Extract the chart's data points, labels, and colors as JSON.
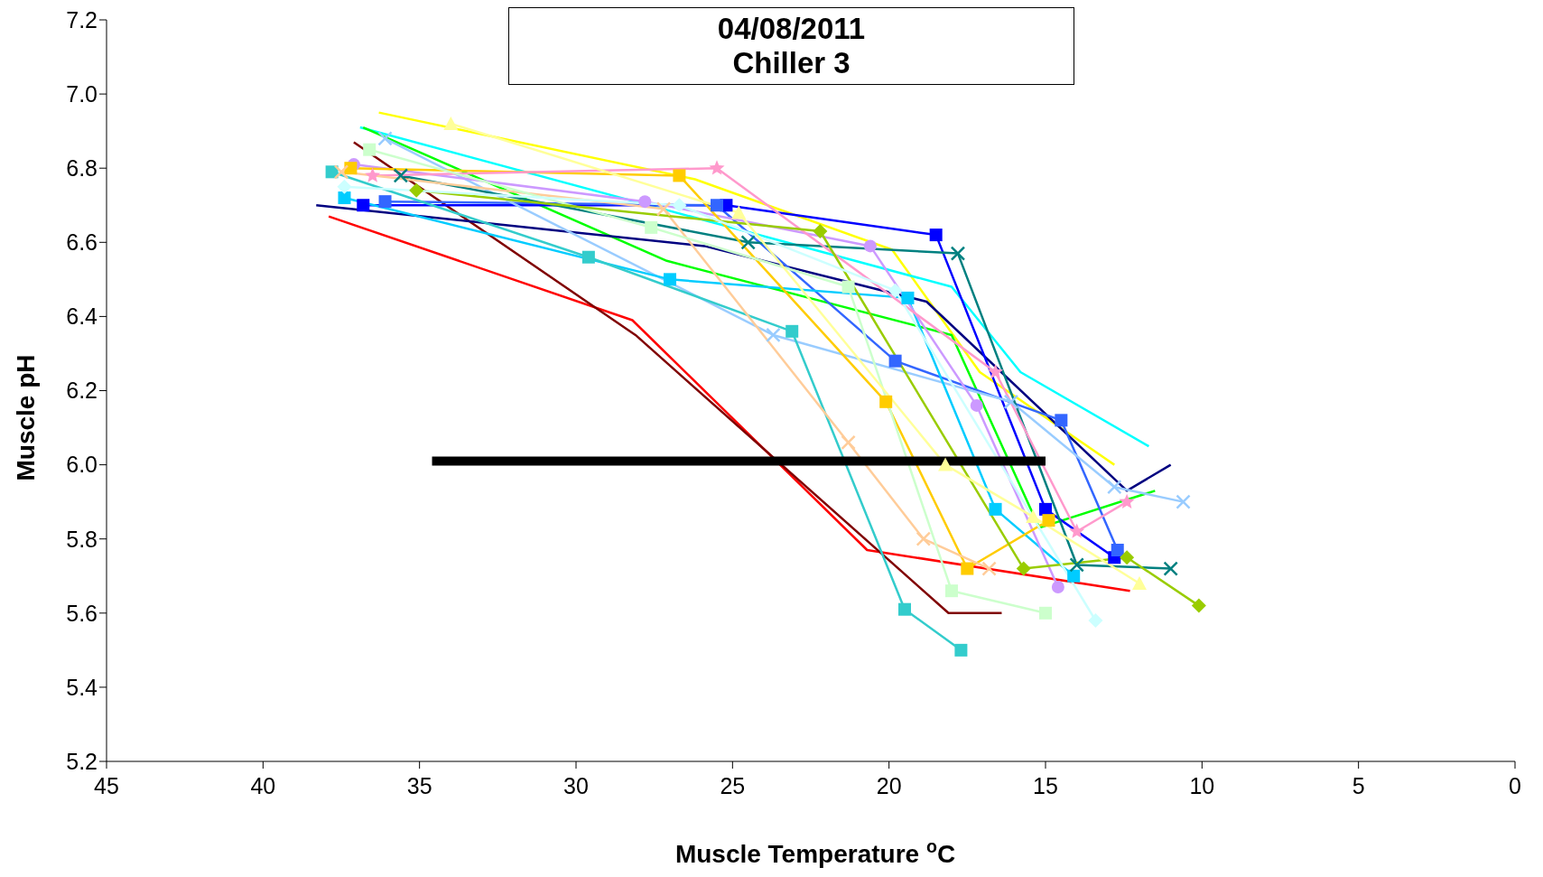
{
  "chart_data": {
    "type": "line",
    "title": "04/08/2011\nChiller 3",
    "xlabel": "Muscle Temperature $^{o}$C",
    "ylabel": "Muscle pH",
    "xlim": [
      45,
      0
    ],
    "xticks": [
      45,
      40,
      35,
      30,
      25,
      20,
      15,
      10,
      5,
      0
    ],
    "ylim": [
      5.2,
      7.2
    ],
    "yticks": [
      5.2,
      5.4,
      5.6,
      5.8,
      {
        "value": 6,
        "label": "6.0"
      },
      6.2,
      6.4,
      6.6,
      6.8,
      {
        "value": 7,
        "label": "7.0"
      },
      7.2
    ],
    "line_style": "solid",
    "series": [
      {
        "color": "#ff0000",
        "marker": "none",
        "x": [
          37.9,
          28.2,
          20.7,
          12.3
        ],
        "values": [
          6.67,
          6.39,
          5.77,
          5.66
        ]
      },
      {
        "color": "#800000",
        "marker": "none",
        "x": [
          37.1,
          28.1,
          18.1,
          16.4
        ],
        "values": [
          6.87,
          6.35,
          5.6,
          5.6
        ]
      },
      {
        "color": "#ffff00",
        "marker": "none",
        "x": [
          36.3,
          26.2,
          19.9,
          17.1,
          12.8
        ],
        "values": [
          6.95,
          6.77,
          6.58,
          6.25,
          6.0
        ]
      },
      {
        "color": "#00ffff",
        "marker": "none",
        "x": [
          36.9,
          18.0,
          15.8,
          11.7
        ],
        "values": [
          6.91,
          6.48,
          6.25,
          6.05
        ]
      },
      {
        "color": "#00ff00",
        "marker": "none",
        "x": [
          36.8,
          27.1,
          18.0,
          15.2,
          11.5
        ],
        "values": [
          6.91,
          6.55,
          6.35,
          5.83,
          5.93
        ]
      },
      {
        "color": "#000080",
        "marker": "none",
        "x": [
          38.3,
          25.9,
          18.8,
          12.4,
          11.0
        ],
        "values": [
          6.7,
          6.59,
          6.44,
          5.93,
          6.0
        ]
      },
      {
        "color": "#0000ff",
        "marker": "square",
        "x": [
          36.8,
          25.2,
          18.5,
          15.0,
          12.8
        ],
        "values": [
          6.7,
          6.7,
          6.62,
          5.88,
          5.75
        ]
      },
      {
        "color": "#3366ff",
        "marker": "square",
        "x": [
          36.1,
          25.5,
          19.8,
          14.5,
          12.7
        ],
        "values": [
          6.71,
          6.7,
          6.28,
          6.12,
          5.77
        ]
      },
      {
        "color": "#99ccff",
        "marker": "cross",
        "x": [
          36.1,
          23.7,
          16.1,
          12.8,
          10.6
        ],
        "values": [
          6.88,
          6.35,
          6.17,
          5.94,
          5.9
        ]
      },
      {
        "color": "#00ccff",
        "marker": "square",
        "x": [
          37.4,
          27.0,
          19.4,
          16.6,
          14.1
        ],
        "values": [
          6.72,
          6.5,
          6.45,
          5.88,
          5.7
        ]
      },
      {
        "color": "#33cccc",
        "marker": "square",
        "x": [
          37.8,
          29.6,
          23.1,
          19.5,
          17.7
        ],
        "values": [
          6.79,
          6.56,
          6.36,
          5.61,
          5.5
        ]
      },
      {
        "color": "#008080",
        "marker": "cross",
        "x": [
          35.6,
          24.5,
          17.8,
          14.0,
          11.0
        ],
        "values": [
          6.78,
          6.6,
          6.57,
          5.73,
          5.72
        ]
      },
      {
        "color": "#cc99ff",
        "marker": "circle",
        "x": [
          37.1,
          27.8,
          20.6,
          17.2,
          14.6
        ],
        "values": [
          6.81,
          6.71,
          6.59,
          6.16,
          5.67
        ]
      },
      {
        "color": "#ffcc00",
        "marker": "square",
        "x": [
          37.2,
          26.7,
          20.1,
          17.5,
          14.9
        ],
        "values": [
          6.8,
          6.78,
          6.17,
          5.72,
          5.85
        ]
      },
      {
        "color": "#ff99cc",
        "marker": "star",
        "x": [
          36.5,
          25.5,
          16.6,
          14.0,
          12.4
        ],
        "values": [
          6.78,
          6.8,
          6.25,
          5.82,
          5.9
        ]
      },
      {
        "color": "#ffcc99",
        "marker": "cross",
        "x": [
          37.5,
          27.2,
          21.3,
          18.9,
          16.8
        ],
        "values": [
          6.79,
          6.69,
          6.06,
          5.8,
          5.72
        ]
      },
      {
        "color": "#ccffcc",
        "marker": "square",
        "x": [
          36.6,
          27.6,
          21.3,
          18.0,
          15.0
        ],
        "values": [
          6.85,
          6.64,
          6.48,
          5.66,
          5.6
        ]
      },
      {
        "color": "#99cc00",
        "marker": "diamond",
        "x": [
          35.1,
          22.2,
          15.7,
          12.4,
          10.1
        ],
        "values": [
          6.74,
          6.63,
          5.72,
          5.75,
          5.62
        ]
      },
      {
        "color": "#ccffff",
        "marker": "diamond",
        "x": [
          37.4,
          26.7,
          19.8,
          13.4
        ],
        "values": [
          6.75,
          6.7,
          6.47,
          5.58
        ]
      },
      {
        "color": "#ffff99",
        "marker": "triangle",
        "x": [
          34.0,
          24.8,
          18.2,
          15.4,
          12.0
        ],
        "values": [
          6.92,
          6.68,
          6.0,
          5.86,
          5.68
        ]
      },
      {
        "color": "#000000",
        "marker": "none",
        "x": [
          34.6,
          15.0
        ],
        "values": [
          6.01,
          6.01
        ]
      }
    ]
  }
}
